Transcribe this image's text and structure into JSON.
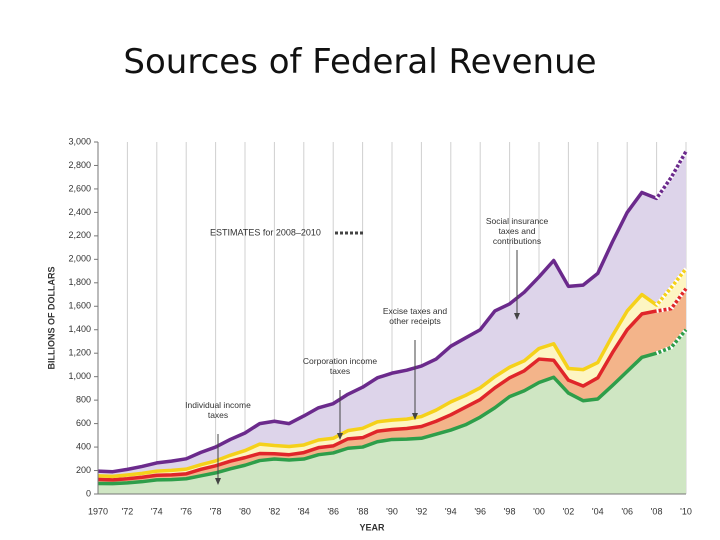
{
  "chart_data": {
    "type": "stacked-area",
    "title": "Sources of Federal Revenue",
    "x_label": "YEAR",
    "y_label": "BILLIONS OF DOLLARS",
    "estimate_label": "ESTIMATES for 2008–2010",
    "estimate_range": [
      2008,
      2010
    ],
    "x": [
      1970,
      1971,
      1972,
      1973,
      1974,
      1975,
      1976,
      1977,
      1978,
      1979,
      1980,
      1981,
      1982,
      1983,
      1984,
      1985,
      1986,
      1987,
      1988,
      1989,
      1990,
      1991,
      1992,
      1993,
      1994,
      1995,
      1996,
      1997,
      1998,
      1999,
      2000,
      2001,
      2002,
      2003,
      2004,
      2005,
      2006,
      2007,
      2008,
      2009,
      2010
    ],
    "series": [
      {
        "name": "Individual income taxes",
        "color": "#2e9e4a",
        "fill": "#cfe6c3",
        "values": [
          90,
          88,
          95,
          105,
          120,
          123,
          130,
          155,
          180,
          215,
          245,
          285,
          298,
          290,
          298,
          335,
          350,
          390,
          400,
          445,
          465,
          468,
          475,
          510,
          545,
          590,
          655,
          735,
          830,
          880,
          950,
          995,
          860,
          795,
          810,
          925,
          1045,
          1165,
          1200,
          1250,
          1400
        ]
      },
      {
        "name": "Corporation income taxes",
        "color": "#e0262a",
        "fill": "#f3b48a",
        "values": [
          35,
          32,
          35,
          38,
          40,
          40,
          42,
          55,
          60,
          65,
          65,
          60,
          45,
          45,
          55,
          60,
          60,
          80,
          80,
          90,
          85,
          90,
          100,
          110,
          130,
          150,
          150,
          170,
          160,
          170,
          200,
          145,
          110,
          125,
          180,
          280,
          355,
          370,
          360,
          330,
          350
        ]
      },
      {
        "name": "Excise taxes and other receipts",
        "color": "#f5d11a",
        "fill": "#fdf5c2",
        "values": [
          30,
          30,
          32,
          33,
          35,
          38,
          40,
          40,
          42,
          50,
          60,
          80,
          70,
          70,
          65,
          65,
          65,
          70,
          80,
          80,
          80,
          80,
          85,
          95,
          110,
          100,
          100,
          95,
          90,
          85,
          90,
          140,
          100,
          140,
          130,
          145,
          160,
          165,
          50,
          180,
          170
        ]
      },
      {
        "name": "Social insurance taxes and contributions",
        "color": "#6b2a8c",
        "fill": "#ddd4ea",
        "values": [
          40,
          40,
          48,
          59,
          70,
          79,
          88,
          105,
          118,
          135,
          150,
          175,
          207,
          195,
          247,
          275,
          295,
          310,
          350,
          375,
          400,
          417,
          430,
          435,
          475,
          490,
          495,
          560,
          540,
          585,
          610,
          710,
          700,
          720,
          760,
          800,
          840,
          870,
          910,
          940,
          1000
        ]
      }
    ],
    "xlim": [
      1970,
      2010
    ],
    "xticks": [
      1970,
      {
        "value": 1972,
        "label": "'72"
      },
      {
        "value": 1974,
        "label": "'74"
      },
      {
        "value": 1976,
        "label": "'76"
      },
      {
        "value": 1978,
        "label": "'78"
      },
      {
        "value": 1980,
        "label": "'80"
      },
      {
        "value": 1982,
        "label": "'82"
      },
      {
        "value": 1984,
        "label": "'84"
      },
      {
        "value": 1986,
        "label": "'86"
      },
      {
        "value": 1988,
        "label": "'88"
      },
      {
        "value": 1990,
        "label": "'90"
      },
      {
        "value": 1992,
        "label": "'92"
      },
      {
        "value": 1994,
        "label": "'94"
      },
      {
        "value": 1996,
        "label": "'96"
      },
      {
        "value": 1998,
        "label": "'98"
      },
      {
        "value": 2000,
        "label": "'00"
      },
      {
        "value": 2002,
        "label": "'02"
      },
      {
        "value": 2004,
        "label": "'04"
      },
      {
        "value": 2006,
        "label": "'06"
      },
      {
        "value": 2008,
        "label": "'08"
      },
      {
        "value": 2010,
        "label": "'10"
      }
    ],
    "ylim": [
      0,
      3000
    ],
    "yticks": [
      0,
      200,
      400,
      600,
      800,
      {
        "value": 1000,
        "label": "1,000"
      },
      {
        "value": 1200,
        "label": "1,200"
      },
      {
        "value": 1400,
        "label": "1,400"
      },
      {
        "value": 1600,
        "label": "1,600"
      },
      {
        "value": 1800,
        "label": "1,800"
      },
      {
        "value": 2000,
        "label": "2,000"
      },
      {
        "value": 2200,
        "label": "2,200"
      },
      {
        "value": 2400,
        "label": "2,400"
      },
      {
        "value": 2600,
        "label": "2,600"
      },
      {
        "value": 2800,
        "label": "2,800"
      },
      {
        "value": 3000,
        "label": "3,000"
      }
    ],
    "grid": true
  }
}
